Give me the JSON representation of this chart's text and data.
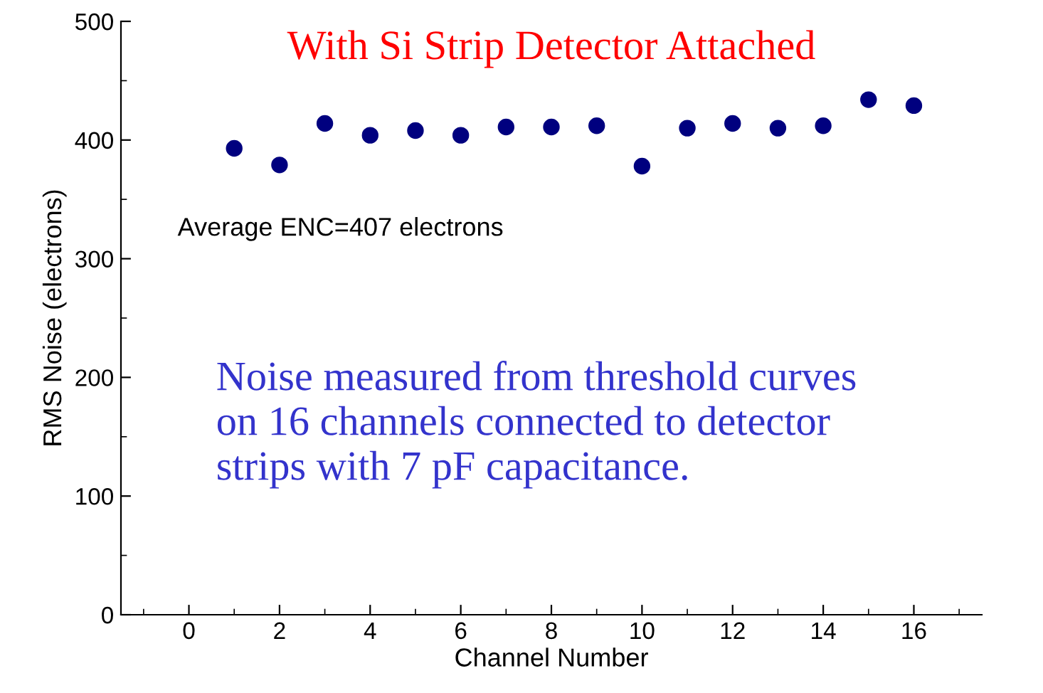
{
  "chart_data": {
    "type": "scatter",
    "title": "With Si Strip Detector Attached",
    "xlabel": "Channel Number",
    "ylabel": "RMS Noise (electrons)",
    "x": [
      1,
      2,
      3,
      4,
      5,
      6,
      7,
      8,
      9,
      10,
      11,
      12,
      13,
      14,
      15,
      16
    ],
    "series": [
      {
        "color": "#00007f",
        "values": [
          393,
          379,
          414,
          404,
          408,
          404,
          411,
          411,
          412,
          378,
          410,
          414,
          410,
          412,
          434,
          429
        ]
      }
    ],
    "xlim": [
      -1.5,
      17.5
    ],
    "xticks": [
      0,
      2,
      4,
      6,
      8,
      10,
      12,
      14,
      16
    ],
    "ylim": [
      0,
      500
    ],
    "yticks": [
      0,
      100,
      200,
      300,
      400,
      500
    ],
    "marker": "circle",
    "grid": false,
    "legend": false,
    "annotations": [
      "Average ENC=407 electrons",
      "Noise measured from threshold curves\non 16 channels connected to detector\nstrips with 7 pF capacitance."
    ]
  }
}
